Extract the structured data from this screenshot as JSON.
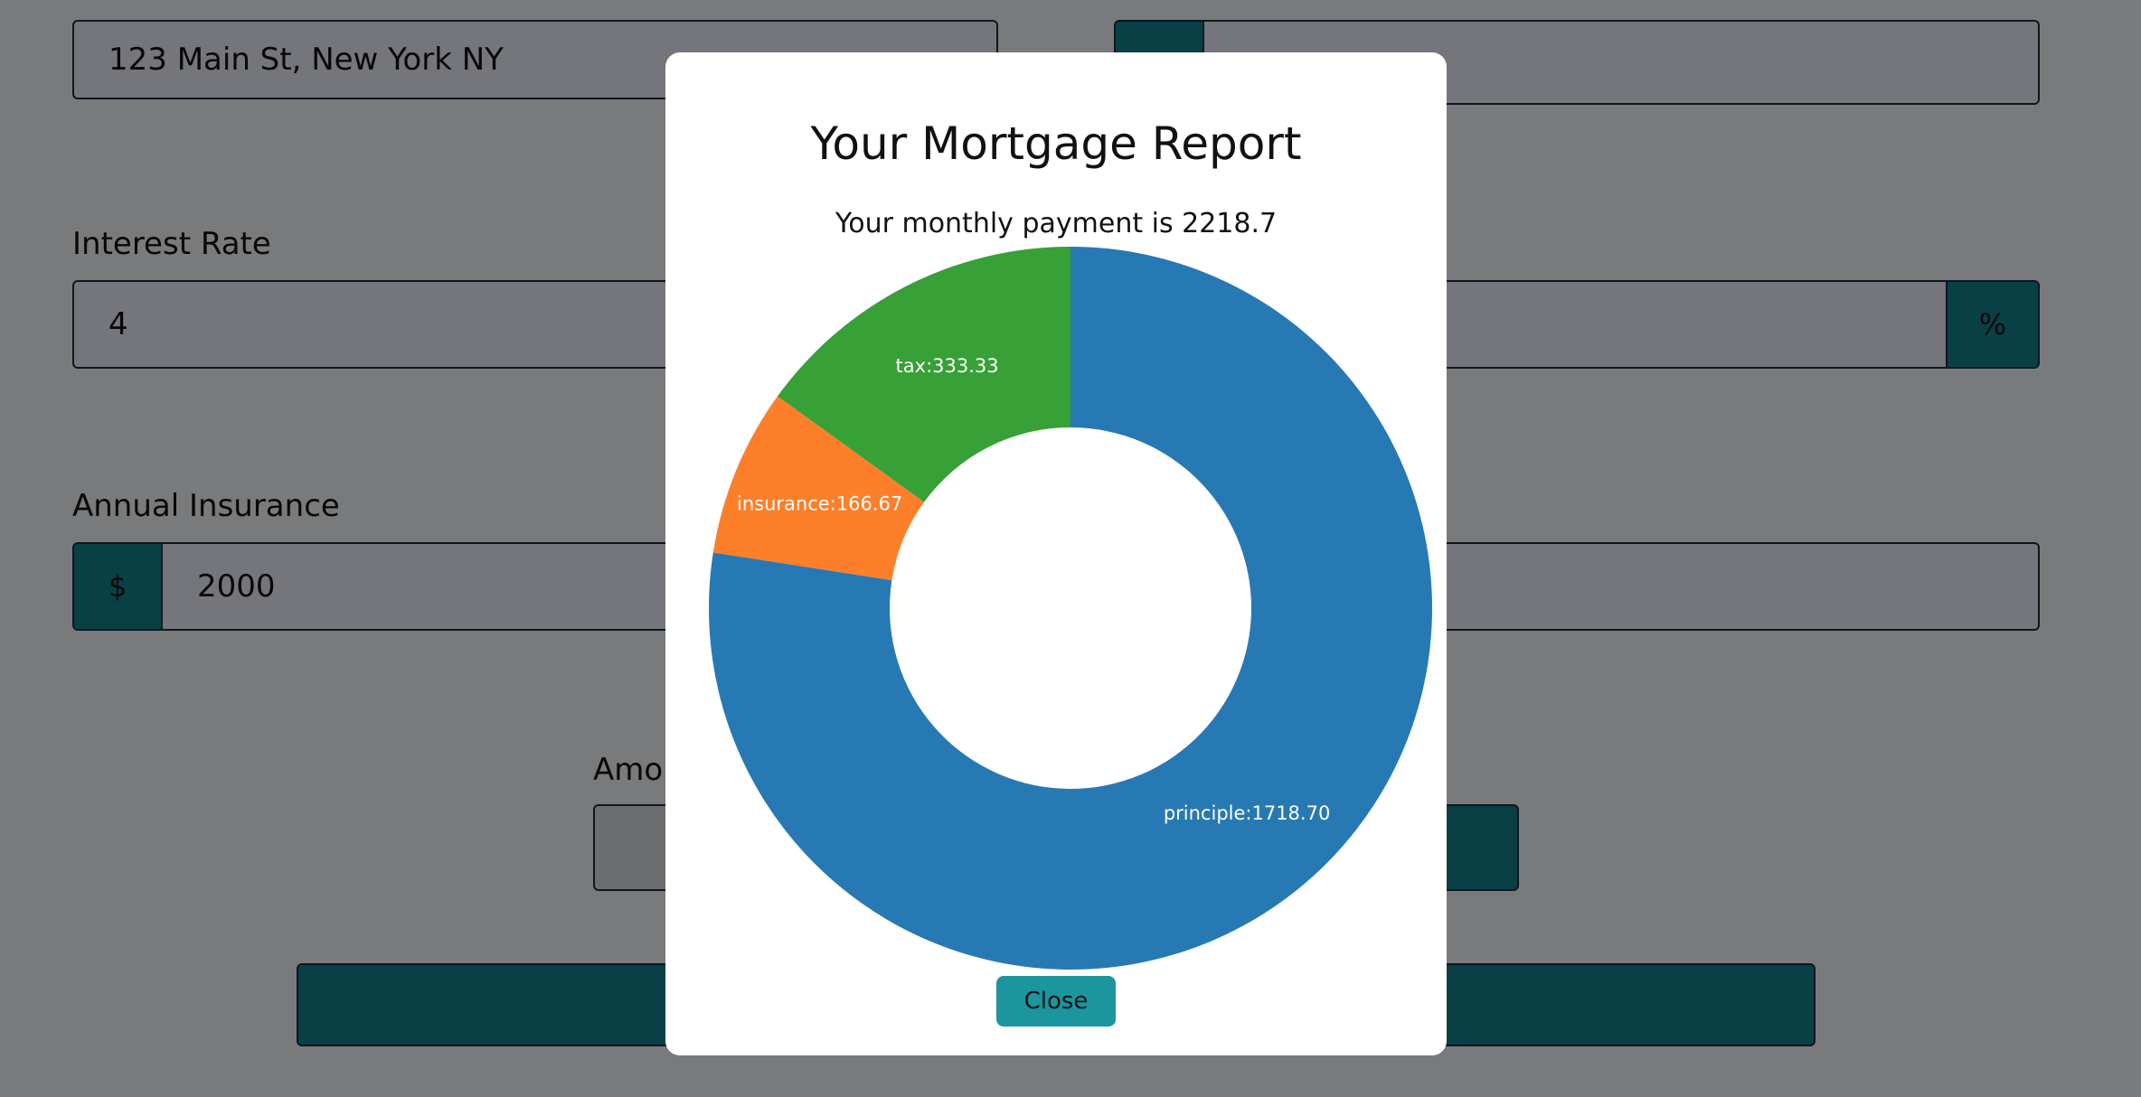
{
  "form": {
    "address_value": "123 Main St, New York NY",
    "interest_rate_label": "Interest Rate",
    "interest_rate_value": "4",
    "percent_symbol": "%",
    "annual_insurance_label": "Annual Insurance",
    "dollar_symbol": "$",
    "annual_insurance_value": "2000",
    "amortization_label_partial": "Amor"
  },
  "modal": {
    "title": "Your Mortgage Report",
    "subtitle": "Your monthly payment is 2218.7",
    "close_label": "Close"
  },
  "chart_data": {
    "type": "pie",
    "donut": true,
    "slices": [
      {
        "label": "principle:1718.70",
        "name": "principle",
        "value": 1718.7,
        "color": "#2779b4"
      },
      {
        "label": "insurance:166.67",
        "name": "insurance",
        "value": 166.67,
        "color": "#fd7f2a"
      },
      {
        "label": "tax:333.33",
        "name": "tax",
        "value": 333.33,
        "color": "#37a037"
      }
    ]
  }
}
